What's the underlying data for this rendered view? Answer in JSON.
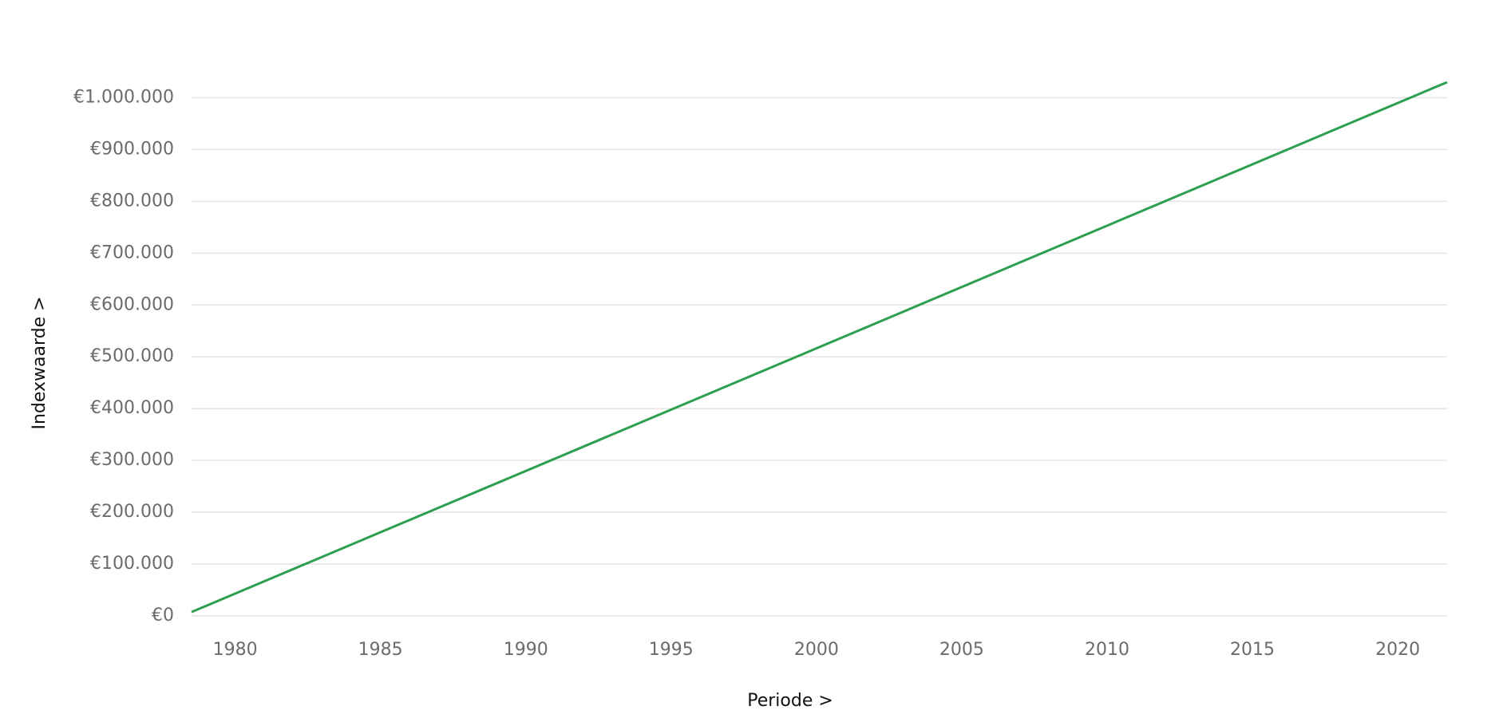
{
  "chart_data": {
    "type": "line",
    "x_label": "Periode >",
    "y_label": "Indexwaarde >",
    "x": [
      1978.5,
      2021.7
    ],
    "series": [
      {
        "color": "#2e9e4f",
        "values": [
          7500,
          1030000
        ]
      }
    ],
    "xlim": [
      1978.5,
      2021.7
    ],
    "xticks": [
      1980,
      1985,
      1990,
      1995,
      2000,
      2005,
      2010,
      2015,
      2020
    ],
    "ylim": [
      0,
      1030000
    ],
    "yticks": [
      {
        "value": 0,
        "label": "€0"
      },
      {
        "value": 100000,
        "label": "€100.000"
      },
      {
        "value": 200000,
        "label": "€200.000"
      },
      {
        "value": 300000,
        "label": "€300.000"
      },
      {
        "value": 400000,
        "label": "€400.000"
      },
      {
        "value": 500000,
        "label": "€500.000"
      },
      {
        "value": 600000,
        "label": "€600.000"
      },
      {
        "value": 700000,
        "label": "€700.000"
      },
      {
        "value": 800000,
        "label": "€800.000"
      },
      {
        "value": 900000,
        "label": "€900.000"
      },
      {
        "value": 1000000,
        "label": "€1.000.000"
      }
    ],
    "grid": true
  }
}
